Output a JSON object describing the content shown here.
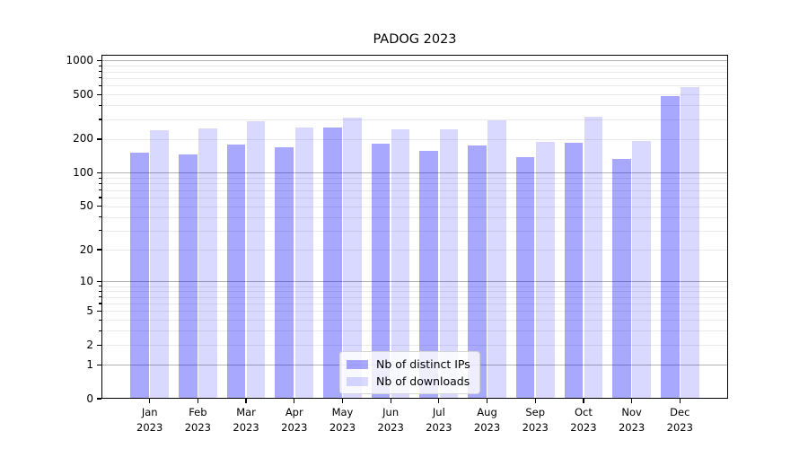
{
  "chart_data": {
    "type": "bar",
    "title": "PADOG 2023",
    "categories": [
      [
        "Jan",
        "2023"
      ],
      [
        "Feb",
        "2023"
      ],
      [
        "Mar",
        "2023"
      ],
      [
        "Apr",
        "2023"
      ],
      [
        "May",
        "2023"
      ],
      [
        "Jun",
        "2023"
      ],
      [
        "Jul",
        "2023"
      ],
      [
        "Aug",
        "2023"
      ],
      [
        "Sep",
        "2023"
      ],
      [
        "Oct",
        "2023"
      ],
      [
        "Nov",
        "2023"
      ],
      [
        "Dec",
        "2023"
      ]
    ],
    "series": [
      {
        "name": "Nb of distinct IPs",
        "color": "rgba(0,0,255,0.34)",
        "values": [
          151,
          147,
          180,
          168,
          255,
          182,
          157,
          175,
          139,
          185,
          132,
          480
        ]
      },
      {
        "name": "Nb of downloads",
        "color": "rgba(0,0,255,0.15)",
        "values": [
          240,
          248,
          290,
          255,
          310,
          244,
          245,
          295,
          190,
          317,
          193,
          580
        ]
      }
    ],
    "yscale": "log1p",
    "ylim": [
      0,
      1126
    ],
    "y_ticks": [
      0,
      1,
      2,
      5,
      10,
      20,
      50,
      100,
      200,
      500,
      1000
    ],
    "y_major_gridlines": [
      1,
      10,
      100,
      1000
    ],
    "y_minor_gridlines": [
      2,
      3,
      4,
      5,
      6,
      7,
      8,
      9,
      20,
      30,
      40,
      50,
      60,
      70,
      80,
      90,
      200,
      300,
      400,
      500,
      600,
      700,
      800,
      900
    ],
    "grid": true,
    "legend_position": "lower center",
    "colors": {
      "bar_distinct_ips": "#a9a9f7",
      "bar_downloads": "#d9d9f8",
      "grid_major": "#b3b3b3",
      "grid_minor": "#eaeaea",
      "axis": "#000000"
    }
  }
}
